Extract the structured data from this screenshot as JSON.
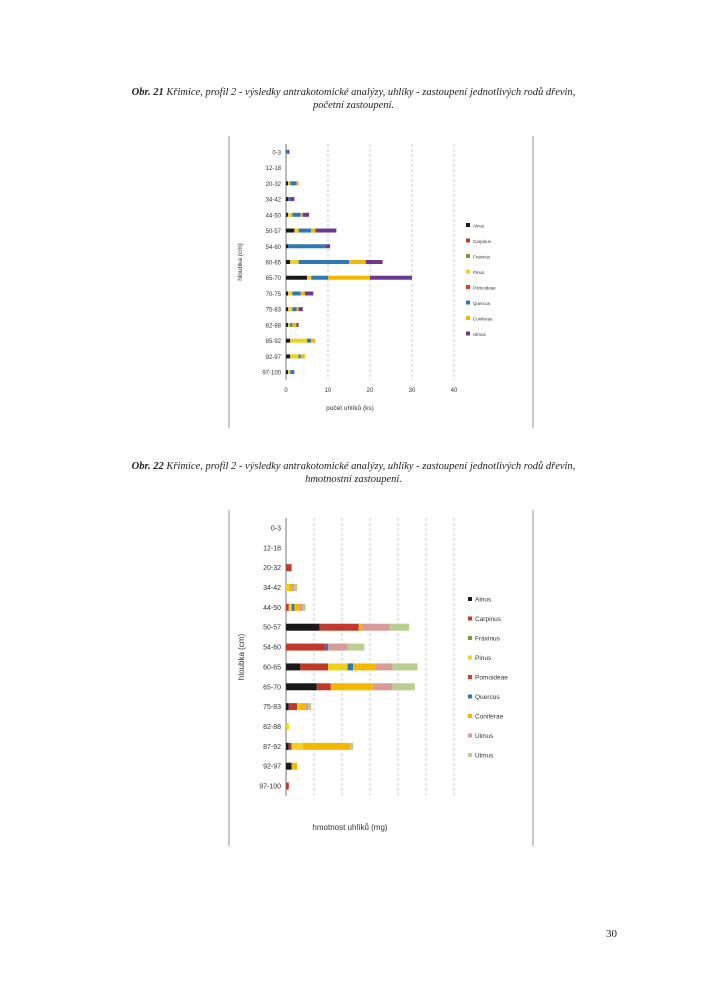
{
  "figures": [
    {
      "label": "Obr. 21",
      "caption_line1": "Křimice, profil 2 - výsledky antrakotomické analýzy, uhlíky - zastoupení jednotlivých rodů dřevin,",
      "caption_line2": "početní zastoupení."
    },
    {
      "label": "Obr. 22",
      "caption_line1": "Křimice, profil 2 - výsledky antrakotomické analýzy, uhlíky - zastoupení jednotlivých rodů dřevin,",
      "caption_line2": "hmotnostní zastoupení."
    }
  ],
  "page_number": "30",
  "chart_data": [
    {
      "type": "bar",
      "orientation": "horizontal",
      "stacked": true,
      "title": "",
      "xlabel": "počet uhlíků (ks)",
      "ylabel": "hloubka (cm)",
      "categories": [
        "0-3",
        "12-18",
        "20-32",
        "34-42",
        "44-50",
        "50-57",
        "54-60",
        "60-65",
        "65-70",
        "70-75",
        "75-83",
        "82-88",
        "85-92",
        "92-97",
        "97-100"
      ],
      "xlim": [
        0,
        40
      ],
      "xticks": [
        0,
        10,
        20,
        30,
        40
      ],
      "grid": true,
      "legend_position": "right",
      "series": [
        {
          "name": "Alnus",
          "color": "#1a1a1a",
          "values": [
            0,
            0,
            0.5,
            0.5,
            0.5,
            2,
            0.5,
            1,
            5,
            0.5,
            0.5,
            0.5,
            1,
            1,
            0.5
          ]
        },
        {
          "name": "Carpinus",
          "color": "#c0392b",
          "values": [
            0,
            0,
            0,
            0,
            0,
            0,
            0,
            0,
            0,
            0,
            0,
            0,
            0,
            0,
            0
          ]
        },
        {
          "name": "Fraxinus",
          "color": "#7a9a3a",
          "values": [
            0,
            0,
            0,
            0,
            0,
            0,
            0,
            0,
            0,
            0,
            0,
            0,
            0,
            0,
            0
          ]
        },
        {
          "name": "Pinus",
          "color": "#f1d21a",
          "values": [
            0,
            0,
            0.5,
            0,
            1,
            1,
            0,
            2,
            1,
            1,
            1,
            0.5,
            4,
            2,
            0.5
          ]
        },
        {
          "name": "Pomoideae",
          "color": "#e03a2a",
          "values": [
            0,
            0,
            0,
            0,
            0,
            0,
            0,
            0,
            0,
            0,
            0,
            0,
            0,
            0,
            0
          ]
        },
        {
          "name": "Quercus",
          "color": "#2e78b8",
          "values": [
            0.3,
            0,
            1.5,
            0.5,
            2,
            3,
            9,
            12,
            4,
            2,
            1,
            0.5,
            1,
            0.5,
            1
          ]
        },
        {
          "name": "Coniferae",
          "color": "#f5b800",
          "values": [
            0,
            0,
            0.5,
            0,
            0.5,
            1,
            0,
            4,
            10,
            1,
            0.5,
            1,
            1,
            1,
            0
          ]
        },
        {
          "name": "Ulmus",
          "color": "#6b3a8e",
          "values": [
            0.5,
            0,
            0,
            1,
            1.5,
            5,
            1,
            4,
            10,
            2,
            1,
            0.5,
            0,
            0,
            0
          ]
        }
      ]
    },
    {
      "type": "bar",
      "orientation": "horizontal",
      "stacked": true,
      "title": "",
      "xlabel": "hmotnost uhlíků (mg)",
      "ylabel": "hloubka (cm)",
      "categories": [
        "0-3",
        "12-18",
        "20-32",
        "34-42",
        "44-50",
        "50-57",
        "54-60",
        "60-65",
        "65-70",
        "75-83",
        "82-88",
        "87-92",
        "92-97",
        "97-100"
      ],
      "xlim": [
        0,
        0.6
      ],
      "grid": true,
      "legend_position": "right",
      "series": [
        {
          "name": "Alnus",
          "color": "#1a1a1a",
          "values": [
            0,
            0,
            0,
            0,
            0,
            0.12,
            0,
            0.05,
            0.11,
            0.01,
            0,
            0.01,
            0.02,
            0
          ]
        },
        {
          "name": "Carpinus",
          "color": "#c0392b",
          "values": [
            0,
            0,
            0.02,
            0,
            0.01,
            0.14,
            0.14,
            0.1,
            0.05,
            0.03,
            0,
            0.01,
            0,
            0.01
          ]
        },
        {
          "name": "Fraxinus",
          "color": "#7a9a3a",
          "values": [
            0,
            0,
            0,
            0,
            0,
            0,
            0,
            0,
            0,
            0,
            0,
            0,
            0,
            0
          ]
        },
        {
          "name": "Pinus",
          "color": "#f1d21a",
          "values": [
            0,
            0,
            0,
            0.01,
            0.01,
            0,
            0,
            0.07,
            0,
            0.01,
            0.01,
            0.04,
            0,
            0
          ]
        },
        {
          "name": "Pomoideae",
          "color": "#e03a2a",
          "values": [
            0,
            0,
            0,
            0,
            0,
            0,
            0,
            0,
            0,
            0,
            0,
            0,
            0,
            0
          ]
        },
        {
          "name": "Quercus",
          "color": "#2e78b8",
          "values": [
            0,
            0,
            0,
            0,
            0.01,
            0,
            0.01,
            0.02,
            0,
            0,
            0,
            0,
            0,
            0
          ]
        },
        {
          "name": "Coniferae",
          "color": "#f5b800",
          "values": [
            0,
            0,
            0,
            0.01,
            0.02,
            0.01,
            0,
            0.08,
            0.15,
            0.02,
            0,
            0.17,
            0.02,
            0
          ]
        },
        {
          "name": "Ulmus",
          "color": "#d99a9a",
          "values": [
            0,
            0,
            0,
            0.01,
            0.01,
            0.1,
            0.07,
            0.06,
            0.07,
            0.01,
            0,
            0,
            0,
            0
          ]
        },
        {
          "name": "Ulmus",
          "color": "#b9cf8f",
          "values": [
            0,
            0,
            0,
            0.01,
            0.01,
            0.07,
            0.06,
            0.09,
            0.08,
            0.01,
            0,
            0.01,
            0,
            0
          ]
        }
      ]
    }
  ]
}
